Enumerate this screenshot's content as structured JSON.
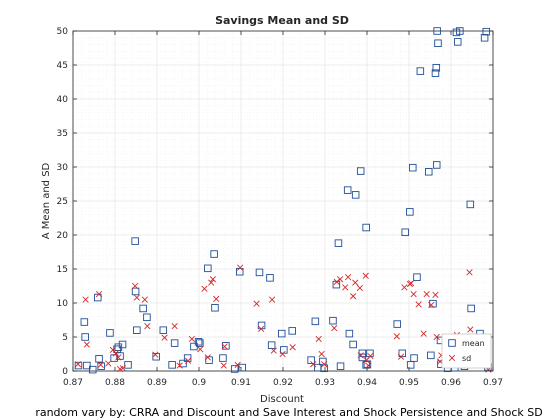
{
  "chart_data": {
    "type": "scatter",
    "title": "Savings Mean and SD",
    "xlabel": "Discount",
    "ylabel": "A Mean and SD",
    "caption": "random vary by: CRRA and Discount and Save Interest and Shock Persistence and Shock SD",
    "xlim": [
      0.87,
      0.97
    ],
    "ylim": [
      0,
      50
    ],
    "xticks": [
      "0.87",
      "0.88",
      "0.89",
      "0.9",
      "0.91",
      "0.92",
      "0.93",
      "0.94",
      "0.95",
      "0.96",
      "0.97"
    ],
    "yticks": [
      "0",
      "5",
      "10",
      "15",
      "20",
      "25",
      "30",
      "35",
      "40",
      "45",
      "50"
    ],
    "grid": true,
    "minor_grid": true,
    "legend_position": "bottom-right",
    "colors": {
      "mean": "#1f4e99",
      "sd": "#d62728",
      "grid": "#e6e6e6",
      "axis": "#262626"
    },
    "series": [
      {
        "name": "mean",
        "marker": "square",
        "points": [
          [
            0.8713,
            0.8
          ],
          [
            0.8727,
            7.2
          ],
          [
            0.8729,
            5.0
          ],
          [
            0.8733,
            0.8
          ],
          [
            0.8747,
            0.2
          ],
          [
            0.8759,
            10.8
          ],
          [
            0.8762,
            1.8
          ],
          [
            0.8767,
            0.7
          ],
          [
            0.8788,
            5.6
          ],
          [
            0.8798,
            1.9
          ],
          [
            0.8805,
            3.2
          ],
          [
            0.8808,
            3.5
          ],
          [
            0.8812,
            2.2
          ],
          [
            0.8818,
            3.9
          ],
          [
            0.8831,
            0.9
          ],
          [
            0.8848,
            19.1
          ],
          [
            0.8849,
            11.7
          ],
          [
            0.8852,
            6.0
          ],
          [
            0.8867,
            9.2
          ],
          [
            0.8876,
            7.9
          ],
          [
            0.8898,
            2.1
          ],
          [
            0.8915,
            6.0
          ],
          [
            0.8936,
            0.9
          ],
          [
            0.8942,
            4.1
          ],
          [
            0.8962,
            1.1
          ],
          [
            0.8973,
            1.9
          ],
          [
            0.8988,
            3.6
          ],
          [
            0.8999,
            4.3
          ],
          [
            0.9002,
            4.1
          ],
          [
            0.9021,
            15.1
          ],
          [
            0.9036,
            17.2
          ],
          [
            0.9038,
            9.3
          ],
          [
            0.9024,
            1.6
          ],
          [
            0.9064,
            3.7
          ],
          [
            0.9057,
            1.9
          ],
          [
            0.9085,
            0.3
          ],
          [
            0.9097,
            14.6
          ],
          [
            0.9103,
            0.5
          ],
          [
            0.9144,
            14.5
          ],
          [
            0.9149,
            6.7
          ],
          [
            0.9169,
            13.7
          ],
          [
            0.9173,
            3.8
          ],
          [
            0.9197,
            5.5
          ],
          [
            0.9222,
            5.9
          ],
          [
            0.9202,
            3.1
          ],
          [
            0.9267,
            1.6
          ],
          [
            0.9277,
            7.3
          ],
          [
            0.9283,
            0.5
          ],
          [
            0.9295,
            1.4
          ],
          [
            0.9298,
            0.4
          ],
          [
            0.9319,
            7.4
          ],
          [
            0.9327,
            12.7
          ],
          [
            0.9332,
            18.8
          ],
          [
            0.9337,
            0.7
          ],
          [
            0.9354,
            26.6
          ],
          [
            0.9358,
            5.5
          ],
          [
            0.9367,
            3.9
          ],
          [
            0.9373,
            25.9
          ],
          [
            0.9385,
            29.4
          ],
          [
            0.9389,
            2.0
          ],
          [
            0.9398,
            21.1
          ],
          [
            0.9407,
            2.6
          ],
          [
            0.9398,
            0.9
          ],
          [
            0.9401,
            1.0
          ],
          [
            0.9389,
            2.6
          ],
          [
            0.9472,
            6.9
          ],
          [
            0.9484,
            2.6
          ],
          [
            0.9491,
            20.4
          ],
          [
            0.9502,
            23.4
          ],
          [
            0.9509,
            29.9
          ],
          [
            0.9519,
            13.8
          ],
          [
            0.9527,
            44.1
          ],
          [
            0.9547,
            29.3
          ],
          [
            0.9557,
            9.9
          ],
          [
            0.9563,
            43.8
          ],
          [
            0.9565,
            44.6
          ],
          [
            0.9566,
            30.3
          ],
          [
            0.9567,
            50.0
          ],
          [
            0.9569,
            48.2
          ],
          [
            0.9576,
            1.0
          ],
          [
            0.9575,
            4.5
          ],
          [
            0.9613,
            49.8
          ],
          [
            0.9616,
            48.4
          ],
          [
            0.9621,
            50.0
          ],
          [
            0.9646,
            24.5
          ],
          [
            0.9648,
            9.2
          ],
          [
            0.9669,
            5.5
          ],
          [
            0.968,
            49.0
          ],
          [
            0.9684,
            49.9
          ],
          [
            0.9688,
            0.6
          ],
          [
            0.9504,
            0.9
          ],
          [
            0.9592,
            0.4
          ],
          [
            0.9632,
            0.7
          ],
          [
            0.9512,
            1.9
          ],
          [
            0.9552,
            2.3
          ],
          [
            0.9609,
            0.5
          ]
        ]
      },
      {
        "name": "sd",
        "marker": "x",
        "points": [
          [
            0.8712,
            1.0
          ],
          [
            0.873,
            10.5
          ],
          [
            0.8733,
            3.9
          ],
          [
            0.8762,
            11.3
          ],
          [
            0.8766,
            0.9
          ],
          [
            0.8784,
            1.1
          ],
          [
            0.8795,
            3.1
          ],
          [
            0.8802,
            2.6
          ],
          [
            0.8808,
            2.0
          ],
          [
            0.8812,
            0.3
          ],
          [
            0.8819,
            0.4
          ],
          [
            0.8848,
            12.5
          ],
          [
            0.8852,
            10.8
          ],
          [
            0.8871,
            10.5
          ],
          [
            0.8877,
            6.6
          ],
          [
            0.8896,
            2.4
          ],
          [
            0.8918,
            4.9
          ],
          [
            0.8942,
            6.6
          ],
          [
            0.8954,
            0.8
          ],
          [
            0.8974,
            1.5
          ],
          [
            0.8983,
            4.7
          ],
          [
            0.9003,
            3.2
          ],
          [
            0.9013,
            12.1
          ],
          [
            0.9029,
            13.0
          ],
          [
            0.9033,
            13.5
          ],
          [
            0.9041,
            10.6
          ],
          [
            0.9021,
            2.0
          ],
          [
            0.9061,
            3.6
          ],
          [
            0.9059,
            0.8
          ],
          [
            0.9092,
            0.9
          ],
          [
            0.9098,
            15.2
          ],
          [
            0.9137,
            9.9
          ],
          [
            0.9148,
            6.2
          ],
          [
            0.9174,
            10.5
          ],
          [
            0.9178,
            3.0
          ],
          [
            0.9199,
            2.5
          ],
          [
            0.9223,
            3.5
          ],
          [
            0.9272,
            1.0
          ],
          [
            0.9285,
            4.7
          ],
          [
            0.9292,
            2.5
          ],
          [
            0.9298,
            1.0
          ],
          [
            0.9322,
            6.3
          ],
          [
            0.9328,
            13.1
          ],
          [
            0.9336,
            13.5
          ],
          [
            0.9348,
            12.3
          ],
          [
            0.9355,
            13.8
          ],
          [
            0.9367,
            11.0
          ],
          [
            0.9372,
            13.0
          ],
          [
            0.9383,
            12.2
          ],
          [
            0.9385,
            2.3
          ],
          [
            0.9397,
            14.0
          ],
          [
            0.9399,
            1.6
          ],
          [
            0.9403,
            0.8
          ],
          [
            0.9408,
            2.2
          ],
          [
            0.9471,
            5.1
          ],
          [
            0.9481,
            2.1
          ],
          [
            0.9489,
            12.3
          ],
          [
            0.9502,
            12.8
          ],
          [
            0.9505,
            12.9
          ],
          [
            0.9511,
            11.3
          ],
          [
            0.9523,
            9.8
          ],
          [
            0.9535,
            5.5
          ],
          [
            0.9542,
            11.3
          ],
          [
            0.9553,
            9.7
          ],
          [
            0.9563,
            11.2
          ],
          [
            0.9566,
            5.0
          ],
          [
            0.9574,
            1.4
          ],
          [
            0.9577,
            2.3
          ],
          [
            0.9619,
            2.0
          ],
          [
            0.9614,
            5.3
          ],
          [
            0.963,
            0.9
          ],
          [
            0.9644,
            14.5
          ],
          [
            0.9646,
            6.1
          ],
          [
            0.9665,
            4.2
          ],
          [
            0.967,
            3.0
          ],
          [
            0.9683,
            0.9
          ],
          [
            0.9689,
            0.2
          ]
        ]
      }
    ]
  }
}
